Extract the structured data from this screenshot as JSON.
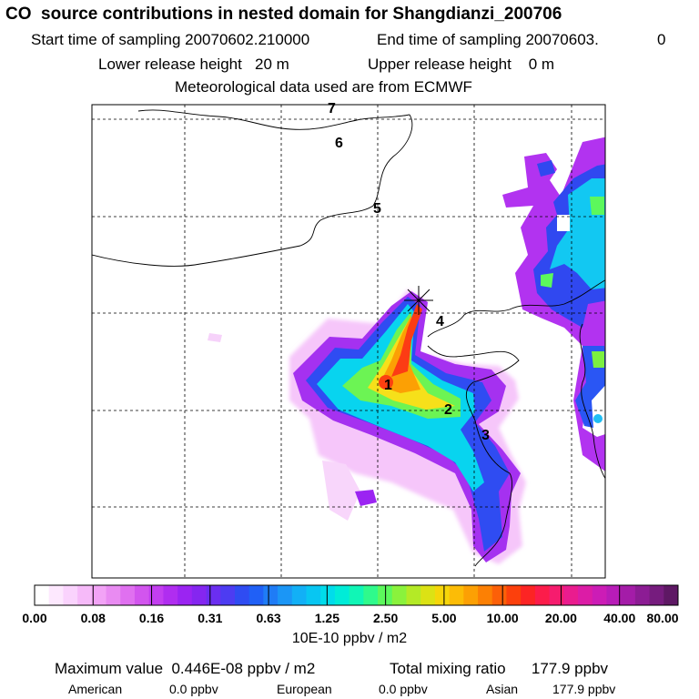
{
  "header": {
    "title": "CO  source contributions in nested domain for Shangdianzi_200706",
    "start_label": "Start time of sampling 20070602.210000",
    "end_label": "End time of sampling 20070603.",
    "end_value": "0",
    "lower_label": "Lower release height   20 m",
    "upper_label": "Upper release height    0 m",
    "met_label": "Meteorological data used are from ECMWF"
  },
  "chart_data": {
    "type": "heatmap",
    "title": "CO  source contributions in nested domain for Shangdianzi_200706",
    "region_labels": [
      "1",
      "2",
      "3",
      "4",
      "5",
      "6",
      "7"
    ],
    "colorbar_ticks": [
      "0.00",
      "0.08",
      "0.16",
      "0.31",
      "0.63",
      "1.25",
      "2.50",
      "5.00",
      "10.00",
      "20.00",
      "40.00",
      "80.00"
    ],
    "colorbar_unit": "10E-10 ppbv / m2",
    "colorbar_colors": [
      "#ffffff",
      "#fde8fe",
      "#fad3fd",
      "#f6baf9",
      "#f2a3f6",
      "#e98bf2",
      "#e070f0",
      "#d255ee",
      "#c33ef0",
      "#b02df0",
      "#9b24f2",
      "#8526f0",
      "#6b2ef0",
      "#4d3cf2",
      "#2f4cf2",
      "#2060f6",
      "#1f7cf6",
      "#1b96f6",
      "#12b0f6",
      "#08c6f2",
      "#00dceb",
      "#00ecd8",
      "#10f6b6",
      "#2ffa8c",
      "#5cf85c",
      "#8af23c",
      "#b4ea26",
      "#dce214",
      "#f6d60a",
      "#fcbc06",
      "#fca004",
      "#fc8004",
      "#fc6008",
      "#fc400c",
      "#fc2424",
      "#fc1c4a",
      "#f61c6e",
      "#ea1c8e",
      "#dc1ca6",
      "#cc1cb6",
      "#b81cb8",
      "#a41ca8",
      "#8c1c94",
      "#761c7e",
      "#5e1864"
    ],
    "maximum_label": "Maximum value  0.446E-08 ppbv / m2",
    "total_label": "Total mixing ratio      177.9 ppbv",
    "contributions": [
      {
        "region": "American",
        "value": "0.0 ppbv"
      },
      {
        "region": "European",
        "value": "0.0 ppbv"
      },
      {
        "region": "Asian",
        "value": "177.9 ppbv"
      }
    ]
  }
}
